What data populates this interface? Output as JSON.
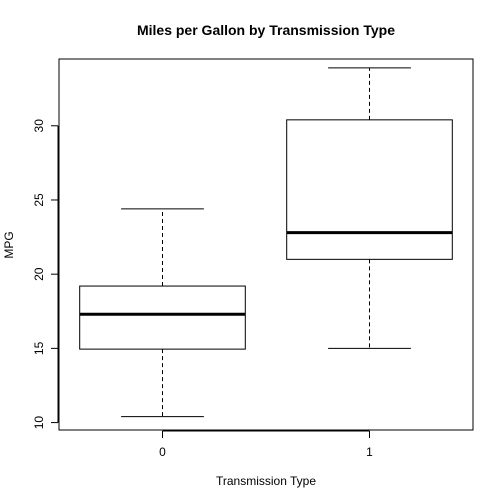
{
  "chart_data": {
    "type": "boxplot",
    "title": "Miles per Gallon by Transmission Type",
    "xlabel": "Transmission Type",
    "ylabel": "MPG",
    "ylim": [
      9.5,
      34.5
    ],
    "yticks": [
      10,
      15,
      20,
      25,
      30
    ],
    "grid": false,
    "categories": [
      "0",
      "1"
    ],
    "boxes": [
      {
        "category": "0",
        "whisker_low": 10.4,
        "q1": 14.95,
        "median": 17.3,
        "q3": 19.2,
        "whisker_high": 24.4
      },
      {
        "category": "1",
        "whisker_low": 15.0,
        "q1": 21.0,
        "median": 22.8,
        "q3": 30.4,
        "whisker_high": 33.9
      }
    ]
  }
}
